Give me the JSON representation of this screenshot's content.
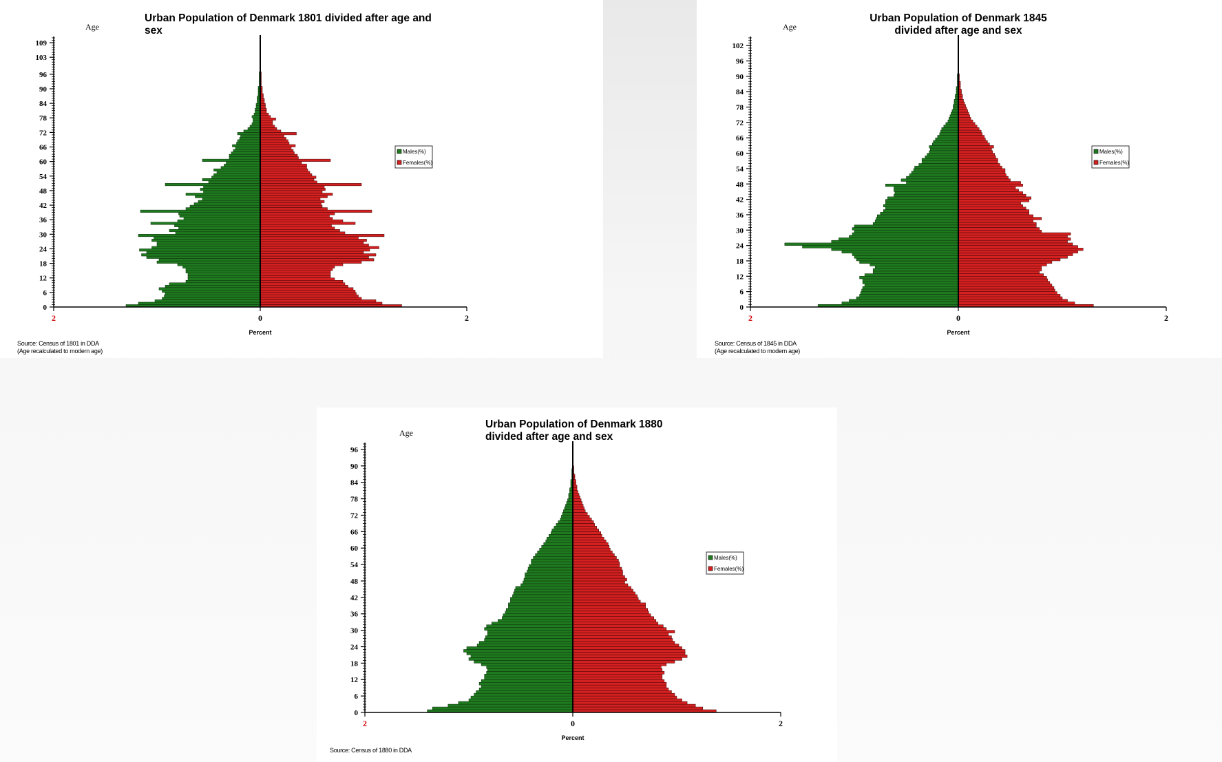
{
  "colors": {
    "males": "#1f7a1f",
    "females": "#d42020",
    "axis": "#000000",
    "left_tick": "#d00000"
  },
  "chart_data": [
    {
      "type": "bar",
      "title": "Urban Population of Denmark 1801 divided after age and sex",
      "title_lines": [
        "Urban Population of Denmark 1801 divided after age and",
        "sex"
      ],
      "ylabel": "Age",
      "xlabel": "Percent",
      "x_ticks": [
        "2",
        "0",
        "2"
      ],
      "xlim": [
        -2,
        2
      ],
      "ylim": [
        0,
        111
      ],
      "y_ticks": [
        0,
        6,
        12,
        18,
        24,
        30,
        36,
        42,
        48,
        54,
        60,
        66,
        72,
        78,
        84,
        90,
        96,
        103,
        109
      ],
      "legend": {
        "position": "right",
        "entries": [
          "Males(%)",
          "Females(%)"
        ]
      },
      "source": [
        "Source: Census of 1801 in DDA",
        "(Age recalculated to modern age)"
      ],
      "series": [
        {
          "name": "Males(%)",
          "values": [
            1.3,
            1.18,
            1.02,
            0.95,
            0.93,
            0.92,
            0.95,
            0.98,
            0.92,
            0.88,
            0.72,
            0.7,
            0.7,
            0.7,
            0.72,
            0.72,
            0.75,
            0.8,
            1.0,
            0.98,
            1.1,
            1.15,
            1.1,
            1.17,
            1.05,
            1.0,
            1.0,
            1.05,
            1.03,
            1.18,
            0.82,
            0.88,
            0.79,
            0.83,
            1.06,
            0.8,
            0.74,
            0.78,
            0.79,
            1.16,
            0.72,
            0.68,
            0.64,
            0.6,
            0.56,
            0.63,
            0.72,
            0.55,
            0.58,
            0.55,
            0.92,
            0.5,
            0.56,
            0.47,
            0.45,
            0.42,
            0.45,
            0.38,
            0.35,
            0.33,
            0.56,
            0.3,
            0.3,
            0.28,
            0.26,
            0.24,
            0.27,
            0.23,
            0.22,
            0.2,
            0.19,
            0.22,
            0.16,
            0.12,
            0.1,
            0.08,
            0.07,
            0.07,
            0.08,
            0.06,
            0.05,
            0.05,
            0.04,
            0.04,
            0.03,
            0.03,
            0.03,
            0.02,
            0.02,
            0.02,
            0.02,
            0.01,
            0.01,
            0.01,
            0.01,
            0.01,
            0.01,
            0.005,
            0.005,
            0.005,
            0.005,
            0.005,
            0.005,
            0,
            0,
            0,
            0,
            0,
            0,
            0,
            0
          ]
        },
        {
          "name": "Females(%)",
          "values": [
            1.37,
            1.18,
            1.12,
            0.98,
            0.95,
            0.93,
            0.92,
            0.9,
            0.85,
            0.82,
            0.8,
            0.72,
            0.68,
            0.68,
            0.68,
            0.7,
            0.72,
            0.8,
            0.98,
            1.1,
            1.05,
            1.12,
            1.0,
            1.06,
            1.15,
            1.05,
            1.0,
            1.03,
            0.95,
            1.2,
            0.82,
            0.77,
            0.72,
            0.69,
            0.92,
            0.8,
            0.7,
            0.67,
            0.72,
            1.08,
            0.65,
            0.6,
            0.59,
            0.62,
            0.58,
            0.65,
            0.7,
            0.6,
            0.63,
            0.62,
            0.98,
            0.55,
            0.52,
            0.54,
            0.5,
            0.48,
            0.46,
            0.45,
            0.45,
            0.4,
            0.68,
            0.37,
            0.36,
            0.33,
            0.32,
            0.3,
            0.34,
            0.28,
            0.27,
            0.25,
            0.23,
            0.35,
            0.2,
            0.16,
            0.14,
            0.12,
            0.12,
            0.15,
            0.1,
            0.08,
            0.06,
            0.06,
            0.05,
            0.05,
            0.04,
            0.04,
            0.03,
            0.03,
            0.02,
            0.02,
            0.02,
            0.01,
            0.01,
            0.01,
            0.01,
            0.01,
            0.01,
            0.005,
            0.005,
            0.005,
            0.005,
            0.005,
            0.005,
            0,
            0,
            0,
            0,
            0,
            0,
            0,
            0
          ]
        }
      ]
    },
    {
      "type": "bar",
      "title": "Urban Population of Denmark 1845 divided after age and sex",
      "title_lines": [
        "Urban Population of Denmark 1845",
        "divided after age and sex"
      ],
      "ylabel": "Age",
      "xlabel": "Percent",
      "x_ticks": [
        "2",
        "0",
        "2"
      ],
      "xlim": [
        -2,
        2
      ],
      "ylim": [
        0,
        105
      ],
      "y_ticks": [
        0,
        6,
        12,
        18,
        24,
        30,
        36,
        42,
        48,
        54,
        60,
        66,
        72,
        78,
        84,
        90,
        96,
        102
      ],
      "legend": {
        "position": "right",
        "entries": [
          "Males(%)",
          "Females(%)"
        ]
      },
      "source": [
        "Source: Census of 1845 in DDA",
        "(Age recalculated to modern age)"
      ],
      "series": [
        {
          "name": "Males(%)",
          "values": [
            1.35,
            1.12,
            1.05,
            0.98,
            0.95,
            0.94,
            0.93,
            0.92,
            0.9,
            0.92,
            0.92,
            0.95,
            0.9,
            0.82,
            0.82,
            0.8,
            0.85,
            0.95,
            0.98,
            1.0,
            1.02,
            1.12,
            1.22,
            1.5,
            1.67,
            1.22,
            1.15,
            1.05,
            1.02,
            1.0,
            1.02,
            1.0,
            0.82,
            0.8,
            0.79,
            0.78,
            0.75,
            0.72,
            0.7,
            0.72,
            0.7,
            0.7,
            0.68,
            0.62,
            0.61,
            0.62,
            0.62,
            0.7,
            0.5,
            0.55,
            0.5,
            0.47,
            0.45,
            0.43,
            0.42,
            0.38,
            0.35,
            0.35,
            0.32,
            0.3,
            0.28,
            0.27,
            0.28,
            0.25,
            0.24,
            0.22,
            0.2,
            0.18,
            0.17,
            0.16,
            0.14,
            0.12,
            0.1,
            0.09,
            0.08,
            0.07,
            0.06,
            0.05,
            0.05,
            0.04,
            0.04,
            0.03,
            0.03,
            0.02,
            0.02,
            0.02,
            0.01,
            0.01,
            0.01,
            0.01,
            0.01,
            0.005,
            0.005,
            0.005,
            0.005,
            0.005,
            0,
            0,
            0,
            0,
            0,
            0,
            0
          ]
        },
        {
          "name": "Females(%)",
          "values": [
            1.3,
            1.12,
            1.05,
            1.0,
            0.98,
            0.95,
            0.93,
            0.92,
            0.9,
            0.88,
            0.86,
            0.85,
            0.82,
            0.78,
            0.8,
            0.8,
            0.85,
            0.9,
            0.98,
            1.05,
            1.1,
            1.15,
            1.2,
            1.15,
            1.1,
            1.05,
            1.08,
            1.05,
            1.08,
            0.8,
            0.78,
            0.75,
            0.75,
            0.72,
            0.8,
            0.72,
            0.68,
            0.68,
            0.65,
            0.62,
            0.6,
            0.68,
            0.7,
            0.65,
            0.62,
            0.58,
            0.55,
            0.62,
            0.6,
            0.5,
            0.48,
            0.46,
            0.45,
            0.45,
            0.42,
            0.4,
            0.38,
            0.38,
            0.36,
            0.35,
            0.33,
            0.32,
            0.34,
            0.3,
            0.28,
            0.26,
            0.25,
            0.23,
            0.22,
            0.2,
            0.18,
            0.16,
            0.14,
            0.12,
            0.11,
            0.1,
            0.09,
            0.08,
            0.07,
            0.06,
            0.05,
            0.04,
            0.04,
            0.03,
            0.03,
            0.02,
            0.02,
            0.02,
            0.01,
            0.01,
            0.01,
            0.005,
            0.005,
            0.005,
            0.005,
            0.005,
            0,
            0,
            0,
            0,
            0,
            0,
            0
          ]
        }
      ]
    },
    {
      "type": "bar",
      "title": "Urban Population of Denmark 1880 divided after age and sex",
      "title_lines": [
        "Urban Population of Denmark 1880",
        "divided after age and sex"
      ],
      "ylabel": "Age",
      "xlabel": "Percent",
      "x_ticks": [
        "2",
        "0",
        "2"
      ],
      "xlim": [
        -2,
        2
      ],
      "ylim": [
        0,
        98
      ],
      "y_ticks": [
        0,
        6,
        12,
        18,
        24,
        30,
        36,
        42,
        48,
        54,
        60,
        66,
        72,
        78,
        84,
        90,
        96
      ],
      "legend": {
        "position": "right",
        "entries": [
          "Males(%)",
          "Females(%)"
        ]
      },
      "source": [
        "Source: Census of 1880 in DDA"
      ],
      "series": [
        {
          "name": "Males(%)",
          "values": [
            1.4,
            1.35,
            1.2,
            1.1,
            1.0,
            0.98,
            0.95,
            0.93,
            0.9,
            0.88,
            0.9,
            0.88,
            0.85,
            0.85,
            0.83,
            0.82,
            0.83,
            0.88,
            0.95,
            1.0,
            0.98,
            1.02,
            1.05,
            1.02,
            0.92,
            0.9,
            0.85,
            0.84,
            0.82,
            0.82,
            0.85,
            0.83,
            0.78,
            0.72,
            0.68,
            0.67,
            0.65,
            0.64,
            0.62,
            0.62,
            0.6,
            0.6,
            0.58,
            0.57,
            0.56,
            0.55,
            0.5,
            0.48,
            0.47,
            0.46,
            0.46,
            0.44,
            0.43,
            0.42,
            0.4,
            0.4,
            0.38,
            0.36,
            0.34,
            0.32,
            0.3,
            0.28,
            0.26,
            0.25,
            0.23,
            0.21,
            0.2,
            0.18,
            0.16,
            0.14,
            0.12,
            0.11,
            0.1,
            0.09,
            0.08,
            0.07,
            0.06,
            0.05,
            0.04,
            0.04,
            0.03,
            0.03,
            0.02,
            0.02,
            0.02,
            0.01,
            0.01,
            0.01,
            0.01,
            0.005,
            0.005,
            0.005,
            0,
            0,
            0,
            0,
            0
          ]
        },
        {
          "name": "Females(%)",
          "values": [
            1.38,
            1.25,
            1.18,
            1.1,
            1.05,
            1.0,
            0.98,
            0.95,
            0.92,
            0.9,
            0.9,
            0.88,
            0.86,
            0.86,
            0.88,
            0.86,
            0.85,
            0.9,
            0.98,
            1.05,
            1.1,
            1.08,
            1.08,
            1.05,
            1.02,
            0.98,
            0.96,
            0.95,
            0.92,
            0.98,
            0.9,
            0.87,
            0.82,
            0.8,
            0.78,
            0.75,
            0.73,
            0.72,
            0.7,
            0.7,
            0.65,
            0.63,
            0.62,
            0.6,
            0.58,
            0.56,
            0.53,
            0.5,
            0.52,
            0.5,
            0.48,
            0.48,
            0.47,
            0.45,
            0.45,
            0.44,
            0.42,
            0.4,
            0.38,
            0.36,
            0.35,
            0.34,
            0.32,
            0.3,
            0.28,
            0.27,
            0.25,
            0.23,
            0.21,
            0.2,
            0.18,
            0.16,
            0.14,
            0.12,
            0.11,
            0.1,
            0.09,
            0.08,
            0.07,
            0.06,
            0.05,
            0.04,
            0.04,
            0.03,
            0.03,
            0.02,
            0.02,
            0.01,
            0.01,
            0.01,
            0.005,
            0.005,
            0,
            0,
            0,
            0,
            0
          ]
        }
      ]
    }
  ]
}
